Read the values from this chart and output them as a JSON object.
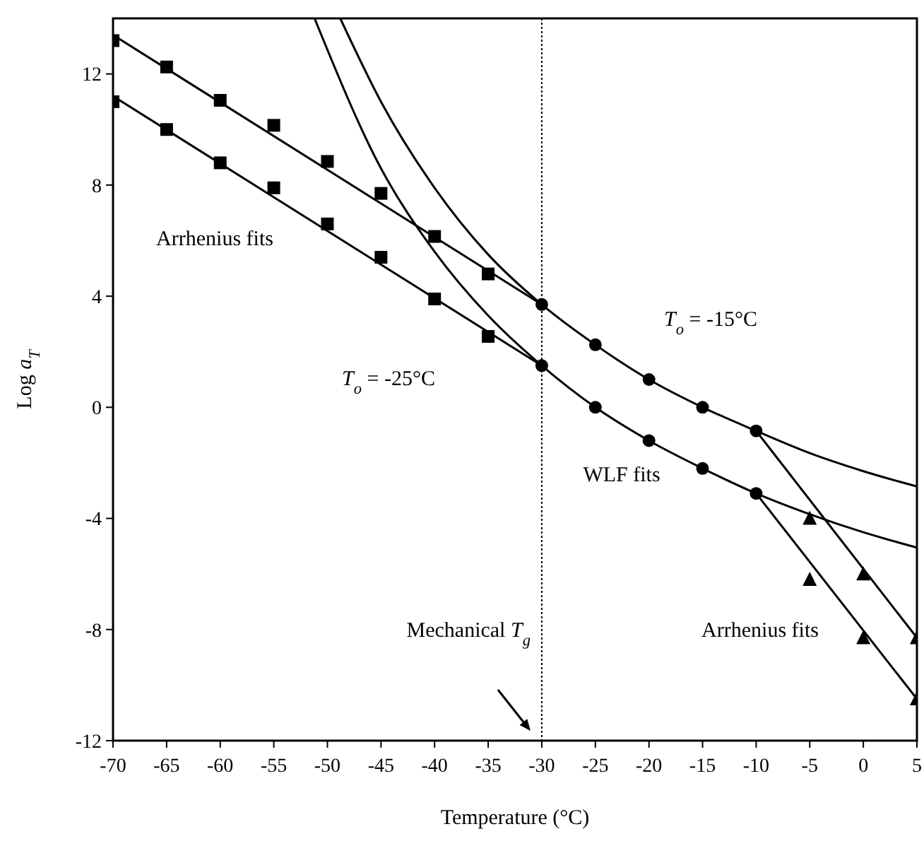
{
  "chart_data": {
    "type": "scatter",
    "xlabel": "Temperature (°C)",
    "ylabel": "Log a$_{T}$",
    "xlim": [
      -70,
      5
    ],
    "xticks": [
      -70,
      -65,
      -60,
      -55,
      -50,
      -45,
      -40,
      -35,
      -30,
      -25,
      -20,
      -15,
      -10,
      -5,
      0,
      5
    ],
    "ylim": [
      -12,
      14
    ],
    "yticks": [
      -12,
      -8,
      -4,
      0,
      4,
      8,
      12
    ],
    "grid": false,
    "series": [
      {
        "marker": "square",
        "color": "#000000",
        "x": [
          -70,
          -65,
          -60,
          -55,
          -50,
          -45,
          -40,
          -35
        ],
        "values": [
          13.2,
          12.25,
          11.05,
          10.15,
          8.85,
          7.7,
          6.15,
          4.8
        ]
      },
      {
        "marker": "square",
        "color": "#000000",
        "x": [
          -70,
          -65,
          -60,
          -55,
          -50,
          -45,
          -40,
          -35
        ],
        "values": [
          11.0,
          10.0,
          8.8,
          7.9,
          6.6,
          5.4,
          3.9,
          2.55
        ]
      },
      {
        "marker": "circle",
        "color": "#000000",
        "x": [
          -30,
          -25,
          -20,
          -15,
          -10
        ],
        "values": [
          3.7,
          2.25,
          1.0,
          0.0,
          -0.85
        ]
      },
      {
        "marker": "circle",
        "color": "#000000",
        "x": [
          -30,
          -25,
          -20,
          -15,
          -10
        ],
        "values": [
          1.5,
          0.0,
          -1.2,
          -2.2,
          -3.1
        ]
      },
      {
        "marker": "triangle",
        "color": "#000000",
        "x": [
          -5,
          0,
          5
        ],
        "values": [
          -4.0,
          -6.0,
          -8.3
        ]
      },
      {
        "marker": "triangle",
        "color": "#000000",
        "x": [
          -5,
          0,
          5
        ],
        "values": [
          -6.2,
          -8.3,
          -10.5
        ]
      },
      {
        "type": "line",
        "marker": "none",
        "line_style": "solid",
        "color": "#000000",
        "x": [
          -70,
          -30
        ],
        "values": [
          13.4,
          3.7
        ]
      },
      {
        "type": "line",
        "marker": "none",
        "line_style": "solid",
        "color": "#000000",
        "x": [
          -70,
          -30
        ],
        "values": [
          11.2,
          1.5
        ]
      },
      {
        "type": "line",
        "marker": "none",
        "line_style": "solid",
        "color": "#000000",
        "x": [
          -48.8,
          -45,
          -40,
          -35,
          -30,
          -25,
          -20,
          -15,
          -10,
          -5,
          0,
          5
        ],
        "values": [
          14,
          11.0,
          7.9,
          5.5,
          3.7,
          2.25,
          1.0,
          0.0,
          -0.85,
          -1.65,
          -2.3,
          -2.85
        ]
      },
      {
        "type": "line",
        "marker": "none",
        "line_style": "solid",
        "color": "#000000",
        "x": [
          -51.2,
          -45,
          -40,
          -35,
          -30,
          -25,
          -20,
          -15,
          -10,
          -5,
          0,
          5
        ],
        "values": [
          14,
          8.6,
          5.6,
          3.3,
          1.5,
          0.0,
          -1.2,
          -2.2,
          -3.1,
          -3.85,
          -4.5,
          -5.05
        ]
      },
      {
        "type": "line",
        "marker": "none",
        "line_style": "solid",
        "color": "#000000",
        "x": [
          -10,
          5
        ],
        "values": [
          -0.85,
          -8.3
        ]
      },
      {
        "type": "line",
        "marker": "none",
        "line_style": "solid",
        "color": "#000000",
        "x": [
          -10,
          5
        ],
        "values": [
          -3.1,
          -10.5
        ]
      }
    ],
    "ref_lines": [
      {
        "axis": "x",
        "value": -30,
        "label": "Mechanical T$_{g}$",
        "line_style": "dotted",
        "color": "#000000"
      }
    ],
    "annotations": [
      "Arrhenius fits",
      "T$_{o}$ = -25°C",
      "T$_{o}$ = -15°C",
      "WLF fits",
      "Arrhenius fits"
    ]
  }
}
